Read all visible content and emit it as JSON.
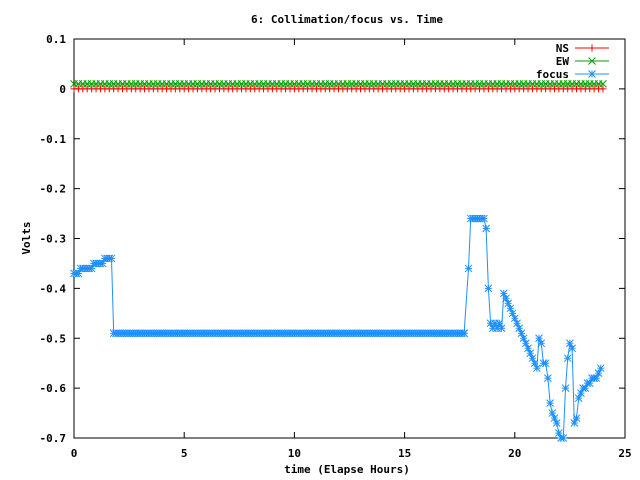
{
  "chart_data": {
    "type": "line",
    "title": "6: Collimation/focus vs. Time",
    "xlabel": "time (Elapse Hours)",
    "ylabel": "Volts",
    "xlim": [
      0,
      25
    ],
    "ylim": [
      -0.7,
      0.1
    ],
    "x_ticks": [
      0,
      5,
      10,
      15,
      20,
      25
    ],
    "y_ticks": [
      0.1,
      0,
      -0.1,
      -0.2,
      -0.3,
      -0.4,
      -0.5,
      -0.6,
      -0.7
    ],
    "legend_position": "top-right",
    "series": [
      {
        "name": "NS",
        "color": "#ff0000",
        "marker": "plus",
        "const_y": 0.0,
        "x_range": [
          0,
          24
        ],
        "step": 0.2
      },
      {
        "name": "EW",
        "color": "#00a000",
        "marker": "cross",
        "const_y": 0.01,
        "x_range": [
          0,
          24
        ],
        "step": 0.2
      },
      {
        "name": "focus",
        "color": "#1e90ff",
        "marker": "star",
        "points": [
          [
            0.0,
            -0.37
          ],
          [
            0.1,
            -0.37
          ],
          [
            0.2,
            -0.37
          ],
          [
            0.3,
            -0.36
          ],
          [
            0.4,
            -0.36
          ],
          [
            0.5,
            -0.36
          ],
          [
            0.6,
            -0.36
          ],
          [
            0.7,
            -0.36
          ],
          [
            0.8,
            -0.36
          ],
          [
            0.9,
            -0.35
          ],
          [
            1.0,
            -0.35
          ],
          [
            1.1,
            -0.35
          ],
          [
            1.2,
            -0.35
          ],
          [
            1.3,
            -0.35
          ],
          [
            1.4,
            -0.34
          ],
          [
            1.5,
            -0.34
          ],
          [
            1.6,
            -0.34
          ],
          [
            1.7,
            -0.34
          ],
          [
            1.8,
            -0.49
          ],
          [
            17.7,
            -0.49
          ],
          [
            17.9,
            -0.36
          ],
          [
            18.0,
            -0.26
          ],
          [
            18.1,
            -0.26
          ],
          [
            18.2,
            -0.26
          ],
          [
            18.3,
            -0.26
          ],
          [
            18.4,
            -0.26
          ],
          [
            18.5,
            -0.26
          ],
          [
            18.6,
            -0.26
          ],
          [
            18.7,
            -0.28
          ],
          [
            18.8,
            -0.4
          ],
          [
            18.9,
            -0.47
          ],
          [
            19.0,
            -0.48
          ],
          [
            19.1,
            -0.47
          ],
          [
            19.2,
            -0.48
          ],
          [
            19.3,
            -0.47
          ],
          [
            19.4,
            -0.48
          ],
          [
            19.5,
            -0.41
          ],
          [
            19.6,
            -0.42
          ],
          [
            19.7,
            -0.43
          ],
          [
            19.8,
            -0.44
          ],
          [
            19.9,
            -0.45
          ],
          [
            20.0,
            -0.46
          ],
          [
            20.1,
            -0.47
          ],
          [
            20.2,
            -0.48
          ],
          [
            20.3,
            -0.49
          ],
          [
            20.4,
            -0.5
          ],
          [
            20.5,
            -0.51
          ],
          [
            20.6,
            -0.52
          ],
          [
            20.7,
            -0.53
          ],
          [
            20.8,
            -0.54
          ],
          [
            20.9,
            -0.55
          ],
          [
            21.0,
            -0.56
          ],
          [
            21.1,
            -0.5
          ],
          [
            21.2,
            -0.51
          ],
          [
            21.3,
            -0.55
          ],
          [
            21.4,
            -0.55
          ],
          [
            21.5,
            -0.58
          ],
          [
            21.6,
            -0.63
          ],
          [
            21.7,
            -0.65
          ],
          [
            21.8,
            -0.66
          ],
          [
            21.9,
            -0.67
          ],
          [
            22.0,
            -0.69
          ],
          [
            22.1,
            -0.7
          ],
          [
            22.2,
            -0.7
          ],
          [
            22.3,
            -0.6
          ],
          [
            22.4,
            -0.54
          ],
          [
            22.5,
            -0.51
          ],
          [
            22.6,
            -0.52
          ],
          [
            22.7,
            -0.67
          ],
          [
            22.8,
            -0.66
          ],
          [
            22.9,
            -0.62
          ],
          [
            23.0,
            -0.61
          ],
          [
            23.1,
            -0.6
          ],
          [
            23.2,
            -0.6
          ],
          [
            23.3,
            -0.59
          ],
          [
            23.4,
            -0.59
          ],
          [
            23.5,
            -0.58
          ],
          [
            23.6,
            -0.58
          ],
          [
            23.7,
            -0.58
          ],
          [
            23.8,
            -0.57
          ],
          [
            23.9,
            -0.56
          ]
        ]
      }
    ]
  }
}
